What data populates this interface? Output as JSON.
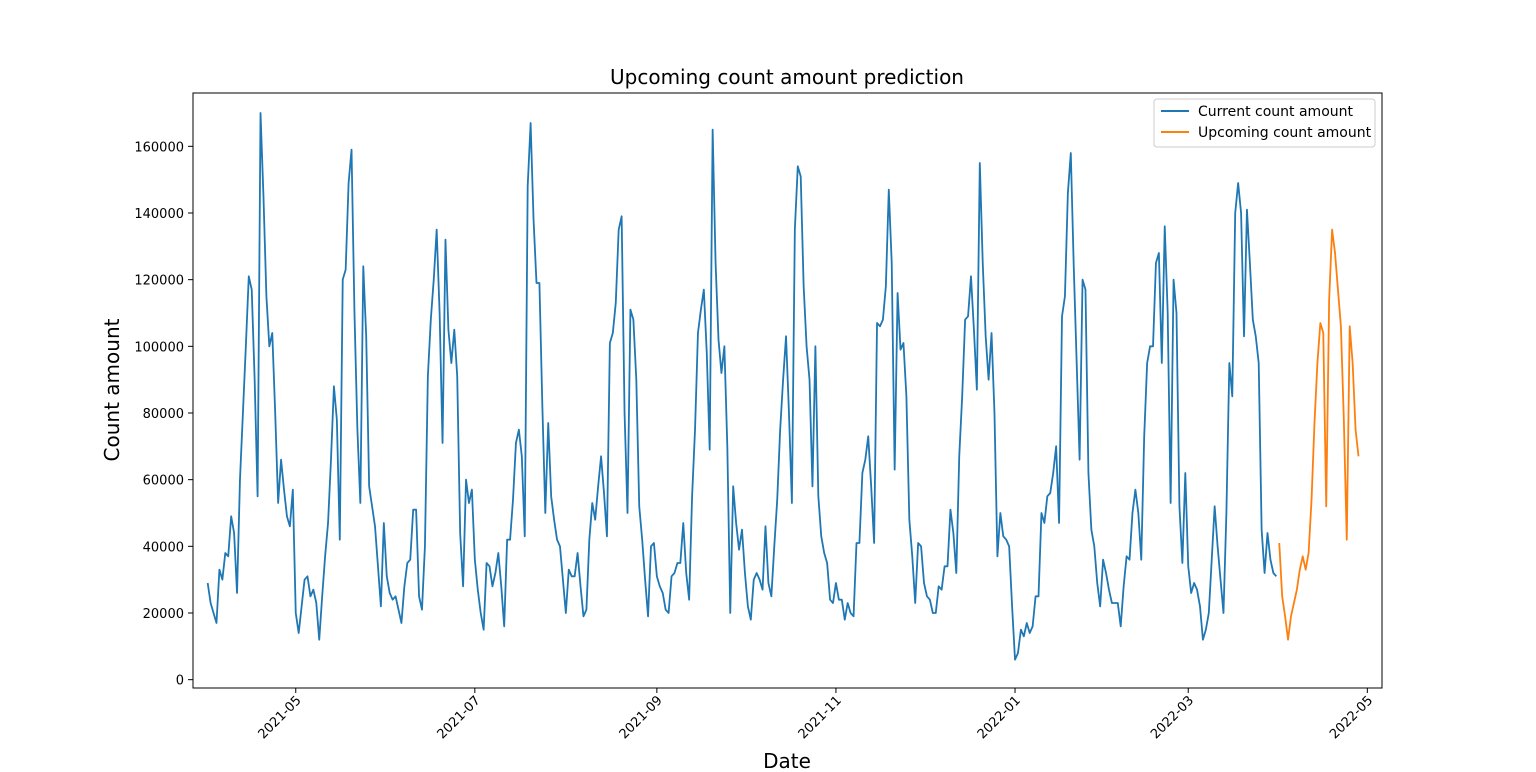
{
  "chart_data": {
    "type": "line",
    "title": "Upcoming count amount prediction",
    "xlabel": "Date",
    "ylabel": "Count amount",
    "x_axis_type": "date",
    "xlim": [
      "2021-03-27",
      "2022-05-06"
    ],
    "ylim": [
      -2500,
      176000
    ],
    "x_ticks": [
      "2021-05-01",
      "2021-07-01",
      "2021-09-01",
      "2021-11-01",
      "2022-01-01",
      "2022-03-01",
      "2022-05-01"
    ],
    "x_tick_labels": [
      "2021-05",
      "2021-07",
      "2021-09",
      "2021-11",
      "2022-01",
      "2022-03",
      "2022-05"
    ],
    "y_ticks": [
      0,
      20000,
      40000,
      60000,
      80000,
      100000,
      120000,
      140000,
      160000
    ],
    "y_tick_labels": [
      "0",
      "20000",
      "40000",
      "60000",
      "80000",
      "100000",
      "120000",
      "140000",
      "160000"
    ],
    "grid": false,
    "legend_position": "top-right",
    "series": [
      {
        "name": "Current count amount",
        "color": "#1f77b4",
        "x_start": "2021-04-01",
        "x_step_days": 1,
        "values": [
          29000,
          23000,
          20000,
          17000,
          33000,
          30000,
          38000,
          37000,
          49000,
          44000,
          26000,
          60000,
          80000,
          100000,
          121000,
          117000,
          90000,
          55000,
          170000,
          145000,
          115000,
          100000,
          104000,
          80000,
          53000,
          66000,
          57000,
          49000,
          46000,
          57000,
          20000,
          14000,
          22000,
          30000,
          31000,
          25000,
          27000,
          23000,
          12000,
          25000,
          37000,
          47000,
          66000,
          88000,
          78000,
          42000,
          120000,
          123000,
          149000,
          159000,
          110000,
          75000,
          53000,
          124000,
          103000,
          58000,
          52000,
          46000,
          34000,
          22000,
          47000,
          31000,
          26000,
          24000,
          25000,
          21000,
          17000,
          28000,
          35000,
          36000,
          51000,
          51000,
          25000,
          21000,
          40000,
          91000,
          108000,
          120000,
          135000,
          110000,
          71000,
          132000,
          105000,
          95000,
          105000,
          91000,
          44000,
          28000,
          60000,
          53000,
          57000,
          36000,
          27000,
          20000,
          15000,
          35000,
          34000,
          28000,
          32000,
          38000,
          28000,
          16000,
          42000,
          42000,
          54000,
          71000,
          75000,
          67000,
          43000,
          148000,
          167000,
          138000,
          119000,
          119000,
          82000,
          50000,
          77000,
          55000,
          48000,
          42000,
          40000,
          30000,
          20000,
          33000,
          31000,
          31000,
          38000,
          28000,
          19000,
          21000,
          42000,
          53000,
          48000,
          58000,
          67000,
          56000,
          43000,
          101000,
          104000,
          113000,
          135000,
          139000,
          80000,
          50000,
          111000,
          108000,
          90000,
          52000,
          42000,
          30000,
          19000,
          40000,
          41000,
          31000,
          28000,
          26000,
          21000,
          20000,
          31000,
          32000,
          35000,
          35000,
          47000,
          32000,
          24000,
          55000,
          75000,
          104000,
          111000,
          117000,
          98000,
          69000,
          165000,
          125000,
          102000,
          92000,
          100000,
          70000,
          20000,
          58000,
          47000,
          39000,
          45000,
          32000,
          22000,
          18000,
          30000,
          32000,
          30000,
          27000,
          46000,
          29000,
          25000,
          40000,
          54000,
          75000,
          90000,
          103000,
          80000,
          53000,
          135000,
          154000,
          151000,
          118000,
          100000,
          90000,
          58000,
          100000,
          55000,
          43000,
          38000,
          35000,
          24000,
          23000,
          29000,
          24000,
          24000,
          18000,
          23000,
          20000,
          19000,
          41000,
          41000,
          62000,
          66000,
          73000,
          58000,
          41000,
          107000,
          106000,
          108000,
          118000,
          147000,
          125000,
          63000,
          116000,
          99000,
          101000,
          85000,
          48000,
          37000,
          23000,
          41000,
          40000,
          29000,
          25000,
          24000,
          20000,
          20000,
          28000,
          27000,
          34000,
          34000,
          51000,
          44000,
          32000,
          67000,
          85000,
          108000,
          109000,
          121000,
          105000,
          87000,
          155000,
          125000,
          103000,
          90000,
          104000,
          80000,
          37000,
          50000,
          43000,
          42000,
          40000,
          22000,
          6000,
          8000,
          15000,
          13000,
          17000,
          14000,
          16000,
          25000,
          25000,
          50000,
          47000,
          55000,
          56000,
          62000,
          70000,
          47000,
          109000,
          115000,
          146000,
          158000,
          124000,
          95000,
          66000,
          120000,
          117000,
          62000,
          45000,
          40000,
          29000,
          22000,
          36000,
          32000,
          27000,
          23000,
          23000,
          23000,
          16000,
          28000,
          37000,
          36000,
          50000,
          57000,
          50000,
          36000,
          73000,
          95000,
          100000,
          100000,
          125000,
          128000,
          95000,
          136000,
          110000,
          53000,
          120000,
          110000,
          52000,
          35000,
          62000,
          34000,
          26000,
          29000,
          27000,
          22000,
          12000,
          15000,
          20000,
          36000,
          52000,
          40000,
          30000,
          20000,
          50000,
          95000,
          85000,
          140000,
          149000,
          140000,
          103000,
          141000,
          125000,
          108000,
          103000,
          95000,
          45000,
          32000,
          44000,
          36000,
          32000,
          31000
        ]
      },
      {
        "name": "Upcoming count amount",
        "color": "#ff7f0e",
        "x_start": "2022-04-01",
        "x_step_days": 1,
        "values": [
          41000,
          25000,
          19000,
          12000,
          19000,
          23000,
          27000,
          33000,
          37000,
          33000,
          38000,
          54000,
          77000,
          95000,
          107000,
          104000,
          52000,
          114000,
          135000,
          128000,
          117000,
          106000,
          78000,
          42000,
          106000,
          95000,
          75000,
          67000
        ]
      }
    ]
  }
}
